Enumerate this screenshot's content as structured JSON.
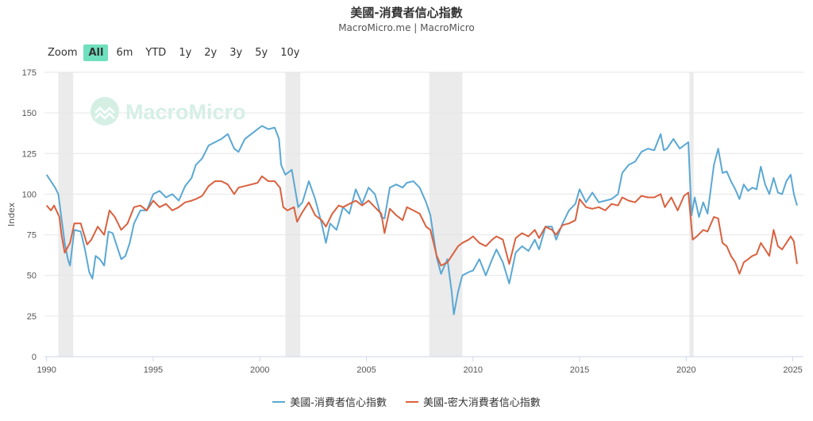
{
  "header": {
    "title": "美國-消費者信心指數",
    "subtitle": "MacroMicro.me | MacroMicro"
  },
  "zoom": {
    "label": "Zoom",
    "buttons": [
      "All",
      "6m",
      "YTD",
      "1y",
      "2y",
      "3y",
      "5y",
      "10y"
    ],
    "active": "All"
  },
  "watermark": "MacroMicro",
  "colors": {
    "series1": "#5ba8d3",
    "series2": "#d9613f",
    "recession": "#ebebeb",
    "grid": "#e6e6e6",
    "watermark": "#d5efe5"
  },
  "chart_data": {
    "type": "line",
    "ylabel": "Index",
    "ylim": [
      0,
      175
    ],
    "yticks": [
      0,
      25,
      50,
      75,
      100,
      125,
      150,
      175
    ],
    "xlim": [
      1989.9,
      2025.5
    ],
    "xticks": [
      1990,
      1995,
      2000,
      2005,
      2010,
      2015,
      2020,
      2025
    ],
    "grid": true,
    "legend_position": "bottom",
    "recessions": [
      [
        1990.55,
        1991.25
      ],
      [
        2001.2,
        2001.9
      ],
      [
        2007.95,
        2009.5
      ],
      [
        2020.15,
        2020.35
      ]
    ],
    "series": [
      {
        "name": "美國-消費者信心指數",
        "color": "#5ba8d3",
        "points": [
          [
            1990.0,
            112
          ],
          [
            1990.2,
            108
          ],
          [
            1990.4,
            104
          ],
          [
            1990.55,
            100
          ],
          [
            1990.7,
            85
          ],
          [
            1990.85,
            70
          ],
          [
            1991.0,
            60
          ],
          [
            1991.1,
            56
          ],
          [
            1991.3,
            78
          ],
          [
            1991.6,
            77
          ],
          [
            1991.8,
            66
          ],
          [
            1992.0,
            52
          ],
          [
            1992.15,
            48
          ],
          [
            1992.3,
            62
          ],
          [
            1992.5,
            60
          ],
          [
            1992.7,
            56
          ],
          [
            1992.9,
            77
          ],
          [
            1993.1,
            76
          ],
          [
            1993.3,
            68
          ],
          [
            1993.5,
            60
          ],
          [
            1993.7,
            62
          ],
          [
            1993.9,
            70
          ],
          [
            1994.1,
            82
          ],
          [
            1994.4,
            90
          ],
          [
            1994.7,
            90
          ],
          [
            1995.0,
            100
          ],
          [
            1995.3,
            102
          ],
          [
            1995.6,
            98
          ],
          [
            1995.9,
            100
          ],
          [
            1996.2,
            96
          ],
          [
            1996.5,
            105
          ],
          [
            1996.8,
            110
          ],
          [
            1997.0,
            118
          ],
          [
            1997.3,
            122
          ],
          [
            1997.6,
            130
          ],
          [
            1997.9,
            132
          ],
          [
            1998.2,
            134
          ],
          [
            1998.5,
            137
          ],
          [
            1998.8,
            128
          ],
          [
            1999.0,
            126
          ],
          [
            1999.3,
            134
          ],
          [
            1999.6,
            137
          ],
          [
            1999.9,
            140
          ],
          [
            2000.1,
            142
          ],
          [
            2000.4,
            140
          ],
          [
            2000.7,
            141
          ],
          [
            2000.9,
            134
          ],
          [
            2001.0,
            118
          ],
          [
            2001.2,
            112
          ],
          [
            2001.5,
            115
          ],
          [
            2001.8,
            92
          ],
          [
            2002.0,
            95
          ],
          [
            2002.3,
            108
          ],
          [
            2002.6,
            97
          ],
          [
            2002.9,
            82
          ],
          [
            2003.1,
            70
          ],
          [
            2003.3,
            82
          ],
          [
            2003.6,
            78
          ],
          [
            2003.9,
            92
          ],
          [
            2004.2,
            88
          ],
          [
            2004.5,
            103
          ],
          [
            2004.8,
            94
          ],
          [
            2005.1,
            104
          ],
          [
            2005.4,
            100
          ],
          [
            2005.7,
            86
          ],
          [
            2005.85,
            85
          ],
          [
            2006.1,
            104
          ],
          [
            2006.4,
            106
          ],
          [
            2006.7,
            104
          ],
          [
            2006.9,
            107
          ],
          [
            2007.2,
            108
          ],
          [
            2007.5,
            104
          ],
          [
            2007.8,
            95
          ],
          [
            2008.0,
            87
          ],
          [
            2008.3,
            61
          ],
          [
            2008.5,
            51
          ],
          [
            2008.8,
            60
          ],
          [
            2009.0,
            40
          ],
          [
            2009.1,
            26
          ],
          [
            2009.3,
            40
          ],
          [
            2009.5,
            50
          ],
          [
            2009.8,
            52
          ],
          [
            2010.0,
            53
          ],
          [
            2010.3,
            60
          ],
          [
            2010.6,
            50
          ],
          [
            2010.9,
            60
          ],
          [
            2011.1,
            66
          ],
          [
            2011.4,
            58
          ],
          [
            2011.7,
            45
          ],
          [
            2012.0,
            64
          ],
          [
            2012.3,
            68
          ],
          [
            2012.6,
            65
          ],
          [
            2012.9,
            72
          ],
          [
            2013.1,
            66
          ],
          [
            2013.4,
            80
          ],
          [
            2013.7,
            80
          ],
          [
            2013.9,
            72
          ],
          [
            2014.2,
            82
          ],
          [
            2014.5,
            90
          ],
          [
            2014.8,
            94
          ],
          [
            2015.0,
            103
          ],
          [
            2015.3,
            95
          ],
          [
            2015.6,
            101
          ],
          [
            2015.9,
            95
          ],
          [
            2016.2,
            96
          ],
          [
            2016.5,
            97
          ],
          [
            2016.8,
            100
          ],
          [
            2017.0,
            113
          ],
          [
            2017.3,
            118
          ],
          [
            2017.6,
            120
          ],
          [
            2017.9,
            126
          ],
          [
            2018.2,
            128
          ],
          [
            2018.5,
            127
          ],
          [
            2018.8,
            137
          ],
          [
            2018.95,
            127
          ],
          [
            2019.1,
            128
          ],
          [
            2019.4,
            134
          ],
          [
            2019.7,
            128
          ],
          [
            2020.0,
            131
          ],
          [
            2020.1,
            132
          ],
          [
            2020.25,
            87
          ],
          [
            2020.4,
            98
          ],
          [
            2020.6,
            86
          ],
          [
            2020.8,
            95
          ],
          [
            2021.0,
            88
          ],
          [
            2021.3,
            118
          ],
          [
            2021.5,
            128
          ],
          [
            2021.7,
            113
          ],
          [
            2021.9,
            114
          ],
          [
            2022.1,
            108
          ],
          [
            2022.3,
            103
          ],
          [
            2022.5,
            97
          ],
          [
            2022.7,
            106
          ],
          [
            2022.9,
            102
          ],
          [
            2023.1,
            104
          ],
          [
            2023.3,
            103
          ],
          [
            2023.5,
            117
          ],
          [
            2023.7,
            106
          ],
          [
            2023.9,
            100
          ],
          [
            2024.1,
            110
          ],
          [
            2024.3,
            101
          ],
          [
            2024.5,
            100
          ],
          [
            2024.7,
            108
          ],
          [
            2024.9,
            112
          ],
          [
            2025.05,
            100
          ],
          [
            2025.2,
            93
          ]
        ]
      },
      {
        "name": "美國-密大消費者信心指數",
        "color": "#d9613f",
        "points": [
          [
            1990.0,
            93
          ],
          [
            1990.2,
            90
          ],
          [
            1990.35,
            93
          ],
          [
            1990.6,
            86
          ],
          [
            1990.7,
            75
          ],
          [
            1990.85,
            64
          ],
          [
            1991.1,
            70
          ],
          [
            1991.3,
            82
          ],
          [
            1991.6,
            82
          ],
          [
            1991.9,
            69
          ],
          [
            1992.1,
            72
          ],
          [
            1992.4,
            80
          ],
          [
            1992.7,
            75
          ],
          [
            1992.95,
            90
          ],
          [
            1993.2,
            86
          ],
          [
            1993.5,
            78
          ],
          [
            1993.8,
            82
          ],
          [
            1994.1,
            92
          ],
          [
            1994.4,
            93
          ],
          [
            1994.7,
            90
          ],
          [
            1995.0,
            96
          ],
          [
            1995.3,
            92
          ],
          [
            1995.6,
            94
          ],
          [
            1995.9,
            90
          ],
          [
            1996.2,
            92
          ],
          [
            1996.5,
            95
          ],
          [
            1996.8,
            96
          ],
          [
            1997.0,
            97
          ],
          [
            1997.3,
            99
          ],
          [
            1997.6,
            105
          ],
          [
            1997.9,
            108
          ],
          [
            1998.2,
            108
          ],
          [
            1998.5,
            106
          ],
          [
            1998.8,
            100
          ],
          [
            1999.0,
            104
          ],
          [
            1999.3,
            105
          ],
          [
            1999.6,
            106
          ],
          [
            1999.9,
            107
          ],
          [
            2000.1,
            111
          ],
          [
            2000.4,
            108
          ],
          [
            2000.7,
            108
          ],
          [
            2000.95,
            104
          ],
          [
            2001.1,
            92
          ],
          [
            2001.3,
            90
          ],
          [
            2001.6,
            92
          ],
          [
            2001.75,
            83
          ],
          [
            2002.0,
            89
          ],
          [
            2002.3,
            95
          ],
          [
            2002.6,
            87
          ],
          [
            2002.9,
            84
          ],
          [
            2003.1,
            80
          ],
          [
            2003.4,
            88
          ],
          [
            2003.7,
            93
          ],
          [
            2003.9,
            92
          ],
          [
            2004.2,
            94
          ],
          [
            2004.5,
            96
          ],
          [
            2004.8,
            93
          ],
          [
            2005.1,
            96
          ],
          [
            2005.4,
            92
          ],
          [
            2005.7,
            88
          ],
          [
            2005.85,
            76
          ],
          [
            2006.1,
            91
          ],
          [
            2006.4,
            87
          ],
          [
            2006.7,
            84
          ],
          [
            2006.9,
            92
          ],
          [
            2007.2,
            90
          ],
          [
            2007.5,
            88
          ],
          [
            2007.8,
            80
          ],
          [
            2008.0,
            78
          ],
          [
            2008.3,
            62
          ],
          [
            2008.5,
            56
          ],
          [
            2008.8,
            58
          ],
          [
            2009.0,
            62
          ],
          [
            2009.3,
            68
          ],
          [
            2009.5,
            70
          ],
          [
            2009.8,
            72
          ],
          [
            2010.0,
            74
          ],
          [
            2010.3,
            70
          ],
          [
            2010.6,
            68
          ],
          [
            2010.9,
            72
          ],
          [
            2011.1,
            74
          ],
          [
            2011.4,
            72
          ],
          [
            2011.7,
            57
          ],
          [
            2012.0,
            73
          ],
          [
            2012.3,
            76
          ],
          [
            2012.6,
            74
          ],
          [
            2012.9,
            78
          ],
          [
            2013.1,
            73
          ],
          [
            2013.4,
            80
          ],
          [
            2013.7,
            78
          ],
          [
            2013.9,
            75
          ],
          [
            2014.2,
            81
          ],
          [
            2014.5,
            82
          ],
          [
            2014.8,
            84
          ],
          [
            2015.0,
            97
          ],
          [
            2015.3,
            92
          ],
          [
            2015.6,
            91
          ],
          [
            2015.9,
            92
          ],
          [
            2016.2,
            90
          ],
          [
            2016.5,
            94
          ],
          [
            2016.8,
            93
          ],
          [
            2017.0,
            98
          ],
          [
            2017.3,
            96
          ],
          [
            2017.6,
            95
          ],
          [
            2017.9,
            99
          ],
          [
            2018.2,
            98
          ],
          [
            2018.5,
            98
          ],
          [
            2018.8,
            100
          ],
          [
            2019.0,
            92
          ],
          [
            2019.3,
            98
          ],
          [
            2019.6,
            90
          ],
          [
            2019.9,
            99
          ],
          [
            2020.1,
            101
          ],
          [
            2020.3,
            72
          ],
          [
            2020.5,
            74
          ],
          [
            2020.8,
            78
          ],
          [
            2021.0,
            77
          ],
          [
            2021.3,
            86
          ],
          [
            2021.5,
            85
          ],
          [
            2021.7,
            70
          ],
          [
            2021.9,
            68
          ],
          [
            2022.1,
            62
          ],
          [
            2022.3,
            58
          ],
          [
            2022.5,
            51
          ],
          [
            2022.7,
            58
          ],
          [
            2022.9,
            60
          ],
          [
            2023.1,
            62
          ],
          [
            2023.3,
            63
          ],
          [
            2023.5,
            70
          ],
          [
            2023.7,
            66
          ],
          [
            2023.9,
            62
          ],
          [
            2024.1,
            78
          ],
          [
            2024.3,
            68
          ],
          [
            2024.5,
            66
          ],
          [
            2024.7,
            70
          ],
          [
            2024.9,
            74
          ],
          [
            2025.05,
            71
          ],
          [
            2025.2,
            57
          ]
        ]
      }
    ]
  }
}
